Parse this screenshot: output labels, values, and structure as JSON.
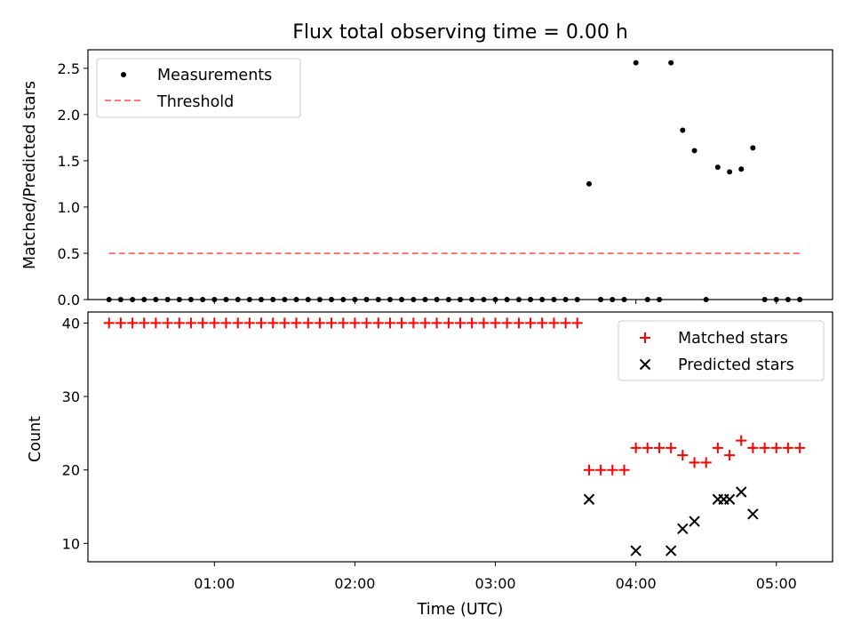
{
  "chart_data": [
    {
      "type": "scatter",
      "title": "Flux total observing time = 0.00 h",
      "xlabel": "",
      "ylabel": "Matched/Predicted stars",
      "xlim": [
        0.1,
        5.4
      ],
      "ylim": [
        0.0,
        2.7
      ],
      "yticks": [
        0.0,
        0.5,
        1.0,
        1.5,
        2.0,
        2.5
      ],
      "ytick_labels": [
        "0.0",
        "0.5",
        "1.0",
        "1.5",
        "2.0",
        "2.5"
      ],
      "legend_position": "top-left",
      "series": [
        {
          "name": "Measurements",
          "marker": "dot",
          "color": "#000000",
          "x": [
            0.25,
            0.333,
            0.417,
            0.5,
            0.583,
            0.667,
            0.75,
            0.833,
            0.917,
            1.0,
            1.083,
            1.167,
            1.25,
            1.333,
            1.417,
            1.5,
            1.583,
            1.667,
            1.75,
            1.833,
            1.917,
            2.0,
            2.083,
            2.167,
            2.25,
            2.333,
            2.417,
            2.5,
            2.583,
            2.667,
            2.75,
            2.833,
            2.917,
            3.0,
            3.083,
            3.167,
            3.25,
            3.333,
            3.417,
            3.5,
            3.583,
            3.667,
            3.75,
            3.833,
            3.917,
            4.0,
            4.083,
            4.167,
            4.25,
            4.333,
            4.417,
            4.5,
            4.583,
            4.667,
            4.75,
            4.833,
            4.917,
            5.0,
            5.083,
            5.167
          ],
          "y": [
            0,
            0,
            0,
            0,
            0,
            0,
            0,
            0,
            0,
            0,
            0,
            0,
            0,
            0,
            0,
            0,
            0,
            0,
            0,
            0,
            0,
            0,
            0,
            0,
            0,
            0,
            0,
            0,
            0,
            0,
            0,
            0,
            0,
            0,
            0,
            0,
            0,
            0,
            0,
            0,
            0,
            1.25,
            0,
            0,
            0,
            2.56,
            0,
            0,
            2.56,
            1.83,
            1.61,
            0,
            1.43,
            1.38,
            1.41,
            1.64,
            0,
            0,
            0,
            0
          ]
        },
        {
          "name": "Threshold",
          "type": "line",
          "style": "dashed",
          "color": "#ff7777",
          "x": [
            0.25,
            5.167
          ],
          "y": [
            0.5,
            0.5
          ]
        }
      ]
    },
    {
      "type": "scatter",
      "title": "",
      "xlabel": "Time (UTC)",
      "ylabel": "Count",
      "xlim": [
        0.1,
        5.4
      ],
      "ylim": [
        7.5,
        41.5
      ],
      "xticks": [
        1,
        2,
        3,
        4,
        5
      ],
      "xtick_labels": [
        "01:00",
        "02:00",
        "03:00",
        "04:00",
        "05:00"
      ],
      "yticks": [
        10,
        20,
        30,
        40
      ],
      "ytick_labels": [
        "10",
        "20",
        "30",
        "40"
      ],
      "legend_position": "top-right",
      "series": [
        {
          "name": "Matched stars",
          "marker": "plus",
          "color": "#ff0000",
          "x": [
            0.25,
            0.333,
            0.417,
            0.5,
            0.583,
            0.667,
            0.75,
            0.833,
            0.917,
            1.0,
            1.083,
            1.167,
            1.25,
            1.333,
            1.417,
            1.5,
            1.583,
            1.667,
            1.75,
            1.833,
            1.917,
            2.0,
            2.083,
            2.167,
            2.25,
            2.333,
            2.417,
            2.5,
            2.583,
            2.667,
            2.75,
            2.833,
            2.917,
            3.0,
            3.083,
            3.167,
            3.25,
            3.333,
            3.417,
            3.5,
            3.583,
            3.667,
            3.75,
            3.833,
            3.917,
            4.0,
            4.083,
            4.167,
            4.25,
            4.333,
            4.417,
            4.5,
            4.583,
            4.667,
            4.75,
            4.833,
            4.917,
            5.0,
            5.083,
            5.167
          ],
          "y": [
            40,
            40,
            40,
            40,
            40,
            40,
            40,
            40,
            40,
            40,
            40,
            40,
            40,
            40,
            40,
            40,
            40,
            40,
            40,
            40,
            40,
            40,
            40,
            40,
            40,
            40,
            40,
            40,
            40,
            40,
            40,
            40,
            40,
            40,
            40,
            40,
            40,
            40,
            40,
            40,
            40,
            20,
            20,
            20,
            20,
            23,
            23,
            23,
            23,
            22,
            21,
            21,
            23,
            22,
            24,
            23,
            23,
            23,
            23,
            23
          ]
        },
        {
          "name": "Predicted stars",
          "marker": "x",
          "color": "#000000",
          "x": [
            3.667,
            4.0,
            4.25,
            4.333,
            4.417,
            4.583,
            4.625,
            4.667,
            4.75,
            4.833
          ],
          "y": [
            16,
            9,
            9,
            12,
            13,
            16,
            16,
            16,
            17,
            14
          ]
        }
      ]
    }
  ]
}
